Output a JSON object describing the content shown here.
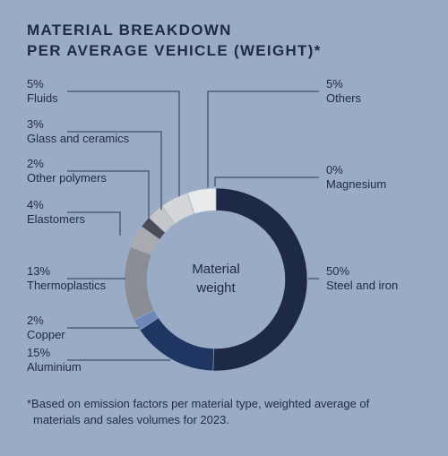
{
  "title_lines": [
    "MATERIAL BREAKDOWN",
    "PER AVERAGE VEHICLE (WEIGHT)*"
  ],
  "footnote_lines": [
    "*Based on emission factors per material type, weighted average of",
    "materials and sales volumes for 2023."
  ],
  "chart_data": {
    "type": "pie",
    "donut": true,
    "center_label": [
      "Material",
      "weight"
    ],
    "unit": "%",
    "slices": [
      {
        "name": "Steel and iron",
        "value": 50,
        "label": "50%",
        "color": "#1e2946"
      },
      {
        "name": "Aluminium",
        "value": 15,
        "label": "15%",
        "color": "#1f3562"
      },
      {
        "name": "Copper",
        "value": 2,
        "label": "2%",
        "color": "#6d87b8"
      },
      {
        "name": "Thermoplastics",
        "value": 13,
        "label": "13%",
        "color": "#8a8d95"
      },
      {
        "name": "Elastomers",
        "value": 4,
        "label": "4%",
        "color": "#a9abb0"
      },
      {
        "name": "Other polymers",
        "value": 2,
        "label": "2%",
        "color": "#4a4d55"
      },
      {
        "name": "Glass and ceramics",
        "value": 3,
        "label": "3%",
        "color": "#c4c6ca"
      },
      {
        "name": "Fluids",
        "value": 5,
        "label": "5%",
        "color": "#d4d6d9"
      },
      {
        "name": "Others",
        "value": 5,
        "label": "5%",
        "color": "#e9eaec"
      },
      {
        "name": "Magnesium",
        "value": 0,
        "label": "0%",
        "color": "#ffffff"
      }
    ]
  }
}
